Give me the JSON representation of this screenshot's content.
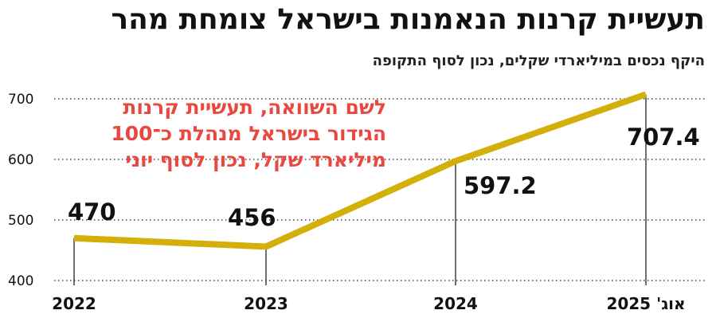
{
  "header": {
    "title": "תעשיית קרנות הנאמנות בישראל צומחת מהר",
    "subtitle": "היקף נכסים במיליארדי שקלים, נכון לסוף התקופה"
  },
  "annotation": {
    "lines": [
      "לשם השוואה, תעשיית קרנות",
      "הגידור בישראל מנהלת כ־100",
      "מיליארד שקל, נכון לסוף יוני"
    ]
  },
  "chart_data": {
    "type": "line",
    "title": "תעשיית קרנות הנאמנות בישראל צומחת מהר",
    "subtitle": "היקף נכסים במיליארדי שקלים, נכון לסוף התקופה",
    "categories": [
      "2022",
      "2023",
      "2024",
      "אוג' 2025"
    ],
    "values": [
      470,
      456,
      597.2,
      707.4
    ],
    "data_labels": [
      "470",
      "456",
      "597.2",
      "707.4"
    ],
    "y_ticks": [
      400,
      500,
      600,
      700
    ],
    "ylim": [
      400,
      720
    ],
    "grid": "horizontal-dotted",
    "colors": {
      "line": "#d4af0a",
      "text": "#111111",
      "annotation": "#e8483f"
    }
  }
}
